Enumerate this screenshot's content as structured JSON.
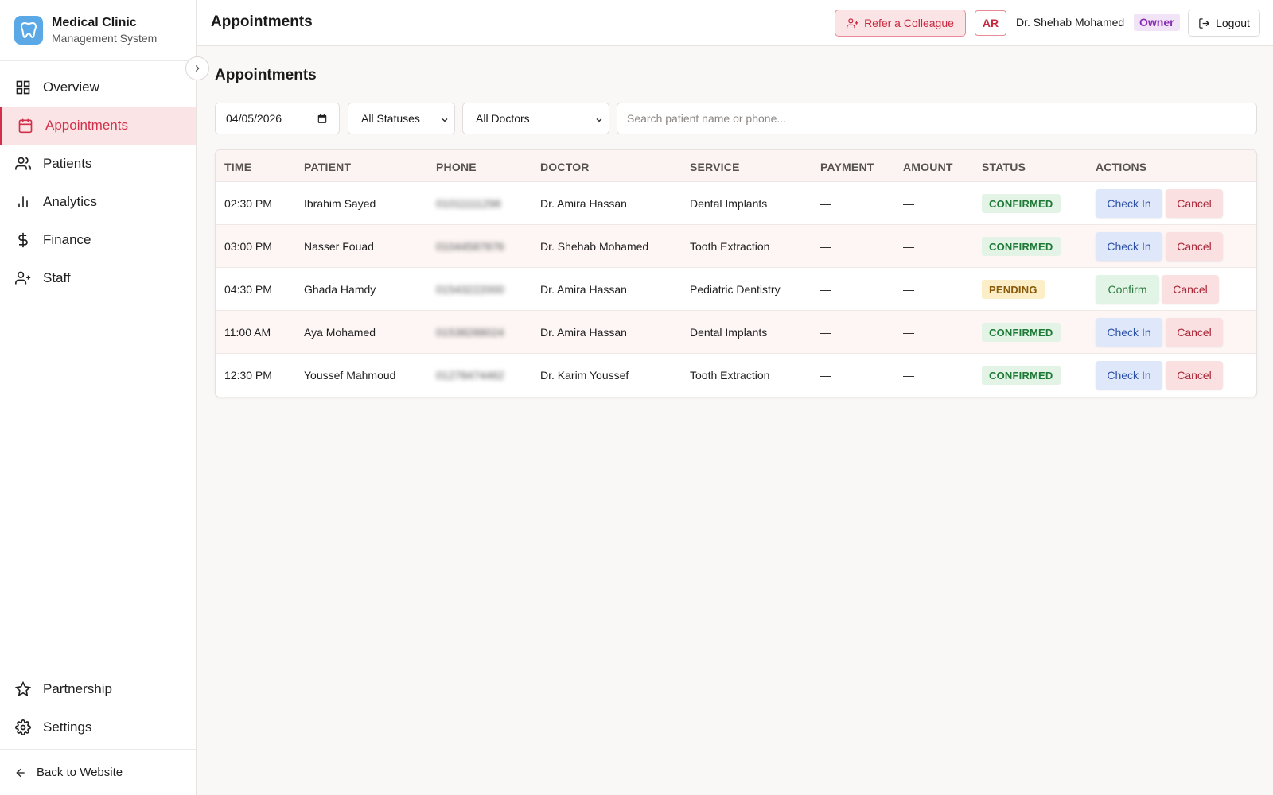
{
  "brand": {
    "title": "Medical Clinic",
    "subtitle": "Management System"
  },
  "sidebar": {
    "items": [
      {
        "label": "Overview",
        "icon": "grid-icon"
      },
      {
        "label": "Appointments",
        "icon": "calendar-icon",
        "active": true
      },
      {
        "label": "Patients",
        "icon": "users-icon"
      },
      {
        "label": "Analytics",
        "icon": "bar-chart-icon"
      },
      {
        "label": "Finance",
        "icon": "dollar-icon"
      },
      {
        "label": "Staff",
        "icon": "user-plus-icon"
      }
    ],
    "bottom_items": [
      {
        "label": "Partnership",
        "icon": "star-icon"
      },
      {
        "label": "Settings",
        "icon": "gear-icon"
      }
    ],
    "back_label": "Back to Website"
  },
  "header": {
    "title": "Appointments",
    "refer_label": "Refer a Colleague",
    "lang_label": "AR",
    "user_name": "Dr. Shehab Mohamed",
    "role": "Owner",
    "logout_label": "Logout"
  },
  "main": {
    "heading": "Appointments",
    "filters": {
      "date": "04/05/2026",
      "status": "All Statuses",
      "doctor": "All Doctors",
      "search_placeholder": "Search patient name or phone..."
    },
    "columns": [
      "TIME",
      "PATIENT",
      "PHONE",
      "DOCTOR",
      "SERVICE",
      "PAYMENT",
      "AMOUNT",
      "STATUS",
      "ACTIONS"
    ],
    "rows": [
      {
        "time": "02:30 PM",
        "patient": "Ibrahim Sayed",
        "phone": "01011111298",
        "doctor": "Dr. Amira Hassan",
        "service": "Dental Implants",
        "payment": "—",
        "amount": "—",
        "status": "CONFIRMED",
        "primary_action": "Check In",
        "secondary_action": "Cancel"
      },
      {
        "time": "03:00 PM",
        "patient": "Nasser Fouad",
        "phone": "01044587876",
        "doctor": "Dr. Shehab Mohamed",
        "service": "Tooth Extraction",
        "payment": "—",
        "amount": "—",
        "status": "CONFIRMED",
        "primary_action": "Check In",
        "secondary_action": "Cancel"
      },
      {
        "time": "04:30 PM",
        "patient": "Ghada Hamdy",
        "phone": "01543222000",
        "doctor": "Dr. Amira Hassan",
        "service": "Pediatric Dentistry",
        "payment": "—",
        "amount": "—",
        "status": "PENDING",
        "primary_action": "Confirm",
        "secondary_action": "Cancel"
      },
      {
        "time": "11:00 AM",
        "patient": "Aya Mohamed",
        "phone": "01538288024",
        "doctor": "Dr. Amira Hassan",
        "service": "Dental Implants",
        "payment": "—",
        "amount": "—",
        "status": "CONFIRMED",
        "primary_action": "Check In",
        "secondary_action": "Cancel"
      },
      {
        "time": "12:30 PM",
        "patient": "Youssef Mahmoud",
        "phone": "01278474462",
        "doctor": "Dr. Karim Youssef",
        "service": "Tooth Extraction",
        "payment": "—",
        "amount": "—",
        "status": "CONFIRMED",
        "primary_action": "Check In",
        "secondary_action": "Cancel"
      }
    ]
  },
  "colors": {
    "accent": "#d2304a",
    "logo": "#5aa9e6",
    "confirmed": "#1f7a38",
    "pending": "#8a5a0a"
  }
}
